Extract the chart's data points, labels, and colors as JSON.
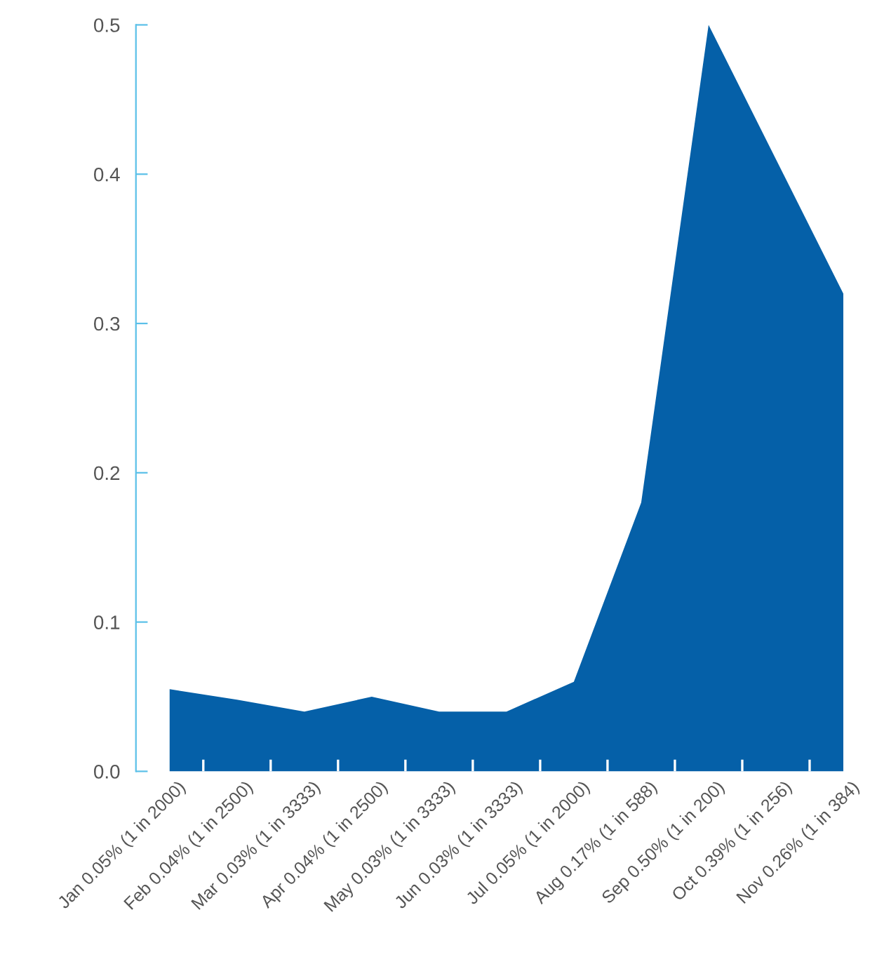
{
  "chart_data": {
    "type": "area",
    "categories": [
      "Jan 0.05% (1 in 2000)",
      "Feb 0.04% (1 in 2500)",
      "Mar 0.03% (1 in 3333)",
      "Apr 0.04% (1 in 2500)",
      "May 0.03% (1 in 3333)",
      "Jun 0.03% (1 in 3333)",
      "Jul 0.05% (1 in 2000)",
      "Aug 0.17% (1 in 588)",
      "Sep 0.50% (1 in 200)",
      "Oct 0.39% (1 in 256)",
      "Nov 0.26% (1 in 384)"
    ],
    "series": [
      {
        "color": "#0560a8",
        "values": [
          0.055,
          0.048,
          0.04,
          0.05,
          0.04,
          0.04,
          0.06,
          0.18,
          0.5,
          0.41,
          0.32
        ]
      }
    ],
    "ylim": [
      0,
      0.5
    ],
    "yticks": [
      {
        "value": 0,
        "label": "0.0"
      },
      0.1,
      0.2,
      0.3,
      0.4,
      0.5
    ],
    "grid": false,
    "legend": false
  }
}
